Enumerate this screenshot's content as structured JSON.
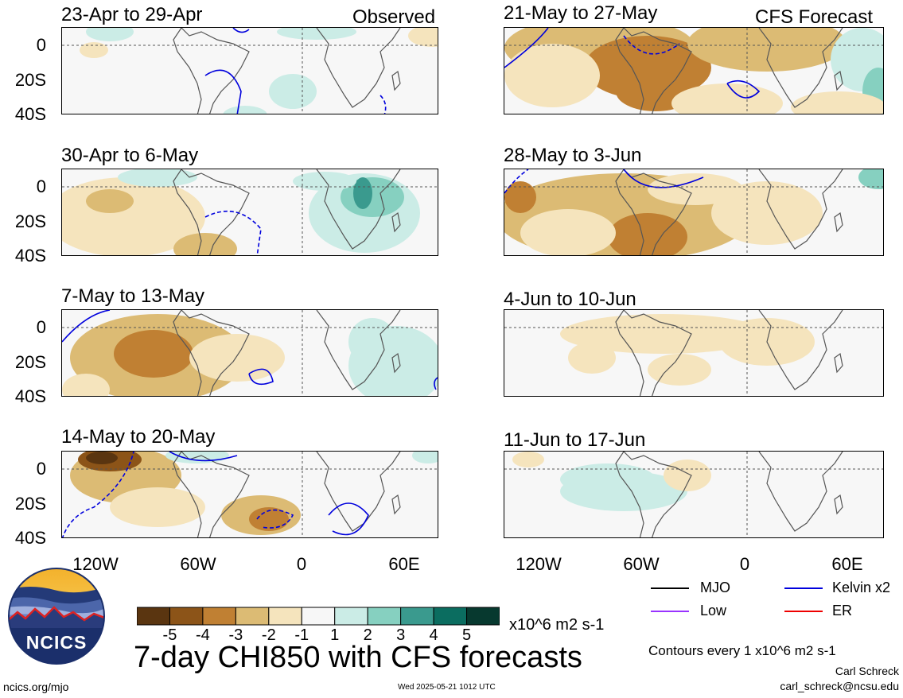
{
  "panels": [
    {
      "title": "23-Apr to 29-Apr",
      "label": "Observed"
    },
    {
      "title": "21-May to 27-May",
      "label": "CFS Forecast"
    },
    {
      "title": "30-Apr to 6-May",
      "label": ""
    },
    {
      "title": "28-May to 3-Jun",
      "label": ""
    },
    {
      "title": "7-May to 13-May",
      "label": ""
    },
    {
      "title": "4-Jun to 10-Jun",
      "label": ""
    },
    {
      "title": "14-May to 20-May",
      "label": ""
    },
    {
      "title": "11-Jun to 17-Jun",
      "label": ""
    }
  ],
  "y_ticks": [
    "0",
    "20S",
    "40S"
  ],
  "x_ticks": [
    "120W",
    "60W",
    "0",
    "60E"
  ],
  "colorbar": {
    "colors": [
      "#5a3510",
      "#8c5418",
      "#c08033",
      "#dcbb74",
      "#f5e4bd",
      "#f7f7f7",
      "#cbece6",
      "#86d0c0",
      "#3a9a8e",
      "#0b6d60",
      "#07392f"
    ],
    "labels": [
      "-5",
      "-4",
      "-3",
      "-2",
      "-1",
      "1",
      "2",
      "3",
      "4",
      "5"
    ],
    "units": "x10^6 m2 s-1"
  },
  "main_title": "7-day CHI850 with CFS forecasts",
  "legend": {
    "items": [
      {
        "label": "MJO",
        "color": "#000000"
      },
      {
        "label": "Kelvin x2",
        "color": "#0000dd"
      },
      {
        "label": "Low",
        "color": "#9933ff"
      },
      {
        "label": "ER",
        "color": "#ee0000"
      }
    ],
    "contours_note": "Contours every 1 x10^6 m2 s-1"
  },
  "author": "Carl Schreck",
  "email": "carl_schreck@ncsu.edu",
  "site": "ncics.org/mjo",
  "timestamp": "Wed 2025-05-21 1012 UTC",
  "logo_text": "NCICS",
  "colors": {
    "land_outline": "#555555",
    "kelvin": "#0000dd",
    "neutral": "#f7f7f7"
  }
}
